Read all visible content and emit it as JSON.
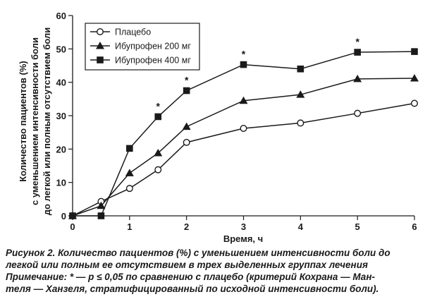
{
  "chart_data": {
    "type": "line",
    "title": "",
    "xlabel": "Время, ч",
    "ylabel_lines": [
      "Количество пациентов (%)",
      "с уменьшением интенсивности боли",
      "до легкой или полным отсутствием боли"
    ],
    "xlim": [
      0,
      6
    ],
    "ylim": [
      0,
      60
    ],
    "xticks": [
      0,
      1,
      2,
      3,
      4,
      5,
      6
    ],
    "yticks": [
      0,
      10,
      20,
      30,
      40,
      50,
      60
    ],
    "grid": false,
    "legend_position": "top-left",
    "series": [
      {
        "name": "Плацебо",
        "marker": "circle-open",
        "x": [
          0,
          0.5,
          1,
          1.5,
          2,
          3,
          4,
          5,
          6
        ],
        "y": [
          0,
          4.3,
          8.2,
          13.8,
          22,
          26.2,
          27.8,
          30.7,
          33.7
        ]
      },
      {
        "name": "Ибупрофен 200 мг",
        "marker": "triangle-filled",
        "x": [
          0,
          0.5,
          1,
          1.5,
          2,
          3,
          4,
          5,
          6
        ],
        "y": [
          0,
          3,
          12.8,
          18.8,
          26.7,
          34.5,
          36.3,
          41,
          41.2
        ]
      },
      {
        "name": "Ибупрофен 400 мг",
        "marker": "square-filled",
        "x": [
          0,
          0.5,
          1,
          1.5,
          2,
          3,
          4,
          5,
          6
        ],
        "y": [
          0,
          0,
          20.2,
          29.7,
          37.5,
          45.3,
          44,
          49,
          49.2
        ]
      }
    ],
    "annotations": [
      {
        "text": "*",
        "x": 1.5,
        "y": 29.7
      },
      {
        "text": "*",
        "x": 2,
        "y": 37.5
      },
      {
        "text": "*",
        "x": 3,
        "y": 45.3
      },
      {
        "text": "*",
        "x": 5,
        "y": 49
      }
    ],
    "colors": {
      "line": "#1a1a1a",
      "marker_fill": "#1a1a1a",
      "open_marker_fill": "#ffffff"
    }
  },
  "caption": {
    "line1": "Рисунок 2. Количество пациентов (%) с уменьшением интенсивности боли до",
    "line2": "легкой или полным ее отсутствием в трех выделенных группах лечения",
    "line3": "Примечание: * — p ≤ 0,05 по сравнению с плацебо (критерий Кохрана — Ман-",
    "line4": "теля — Ханзеля, стратифицированный по исходной интенсивности боли)."
  }
}
